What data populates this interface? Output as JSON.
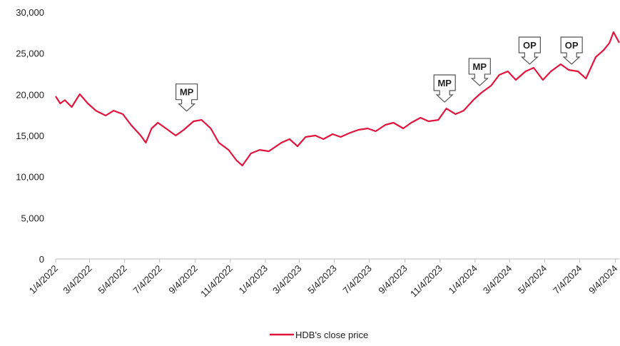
{
  "chart_data": {
    "type": "line",
    "x": [
      "1/4/2022",
      "1/12/2022",
      "1/20/2022",
      "2/1/2022",
      "2/15/2022",
      "3/1/2022",
      "3/15/2022",
      "4/1/2022",
      "4/15/2022",
      "5/1/2022",
      "5/15/2022",
      "6/1/2022",
      "6/10/2022",
      "6/20/2022",
      "7/1/2022",
      "7/15/2022",
      "8/1/2022",
      "8/15/2022",
      "9/1/2022",
      "9/15/2022",
      "10/1/2022",
      "10/15/2022",
      "11/1/2022",
      "11/15/2022",
      "11/25/2022",
      "12/10/2022",
      "12/25/2022",
      "1/10/2023",
      "2/1/2023",
      "2/15/2023",
      "3/1/2023",
      "3/15/2023",
      "4/1/2023",
      "4/15/2023",
      "5/1/2023",
      "5/15/2023",
      "6/1/2023",
      "6/15/2023",
      "7/1/2023",
      "7/15/2023",
      "8/1/2023",
      "8/15/2023",
      "9/1/2023",
      "9/15/2023",
      "10/1/2023",
      "10/15/2023",
      "11/1/2023",
      "11/15/2023",
      "12/1/2023",
      "12/15/2023",
      "1/1/2024",
      "1/15/2024",
      "2/1/2024",
      "2/15/2024",
      "3/1/2024",
      "3/15/2024",
      "4/1/2024",
      "4/15/2024",
      "5/1/2024",
      "5/15/2024",
      "6/1/2024",
      "6/15/2024",
      "7/1/2024",
      "7/15/2024",
      "8/1/2024",
      "8/15/2024",
      "8/25/2024",
      "9/1/2024",
      "9/11/2024"
    ],
    "series": [
      {
        "name": "HDB's close price",
        "color": "#e0143c",
        "values": [
          19770,
          18900,
          19300,
          18470,
          20030,
          18900,
          18030,
          17430,
          18030,
          17600,
          16300,
          15000,
          14130,
          15870,
          16560,
          15870,
          15000,
          15690,
          16730,
          16900,
          15870,
          14130,
          13260,
          11960,
          11360,
          12830,
          13260,
          13090,
          14130,
          14570,
          13700,
          14830,
          15000,
          14570,
          15170,
          14830,
          15350,
          15690,
          15870,
          15520,
          16300,
          16560,
          15870,
          16560,
          17170,
          16730,
          16900,
          18290,
          17600,
          18030,
          19330,
          20200,
          21070,
          22370,
          22800,
          21760,
          22800,
          23240,
          21760,
          22800,
          23670,
          22980,
          22800,
          21930,
          24540,
          25400,
          26270,
          27570,
          26270
        ]
      }
    ],
    "xlim": [
      "1/4/2022",
      "9/11/2024"
    ],
    "xticks": [
      "1/4/2022",
      "3/4/2022",
      "5/4/2022",
      "7/4/2022",
      "9/4/2022",
      "11/4/2022",
      "1/4/2023",
      "3/4/2023",
      "5/4/2023",
      "7/4/2023",
      "9/4/2023",
      "11/4/2023",
      "1/4/2024",
      "3/4/2024",
      "5/4/2024",
      "7/4/2024",
      "9/4/2024"
    ],
    "ylim": [
      0,
      30000
    ],
    "yticks": [
      0,
      {
        "value": 5000,
        "label": "5,000"
      },
      {
        "value": 10000,
        "label": "10,000"
      },
      {
        "value": 15000,
        "label": "15,000"
      },
      {
        "value": 20000,
        "label": "20,000"
      },
      {
        "value": 25000,
        "label": "25,000"
      },
      {
        "value": 30000,
        "label": "30,000"
      }
    ],
    "annotations": [
      {
        "text": "MP",
        "x": "8/20/2022",
        "y": 17800
      },
      {
        "text": "MP",
        "x": "11/12/2023",
        "y": 18900
      },
      {
        "text": "MP",
        "x": "1/12/2024",
        "y": 20900
      },
      {
        "text": "OP",
        "x": "4/8/2024",
        "y": 23500
      },
      {
        "text": "OP",
        "x": "6/20/2024",
        "y": 23500
      }
    ],
    "legend": "bottom"
  }
}
